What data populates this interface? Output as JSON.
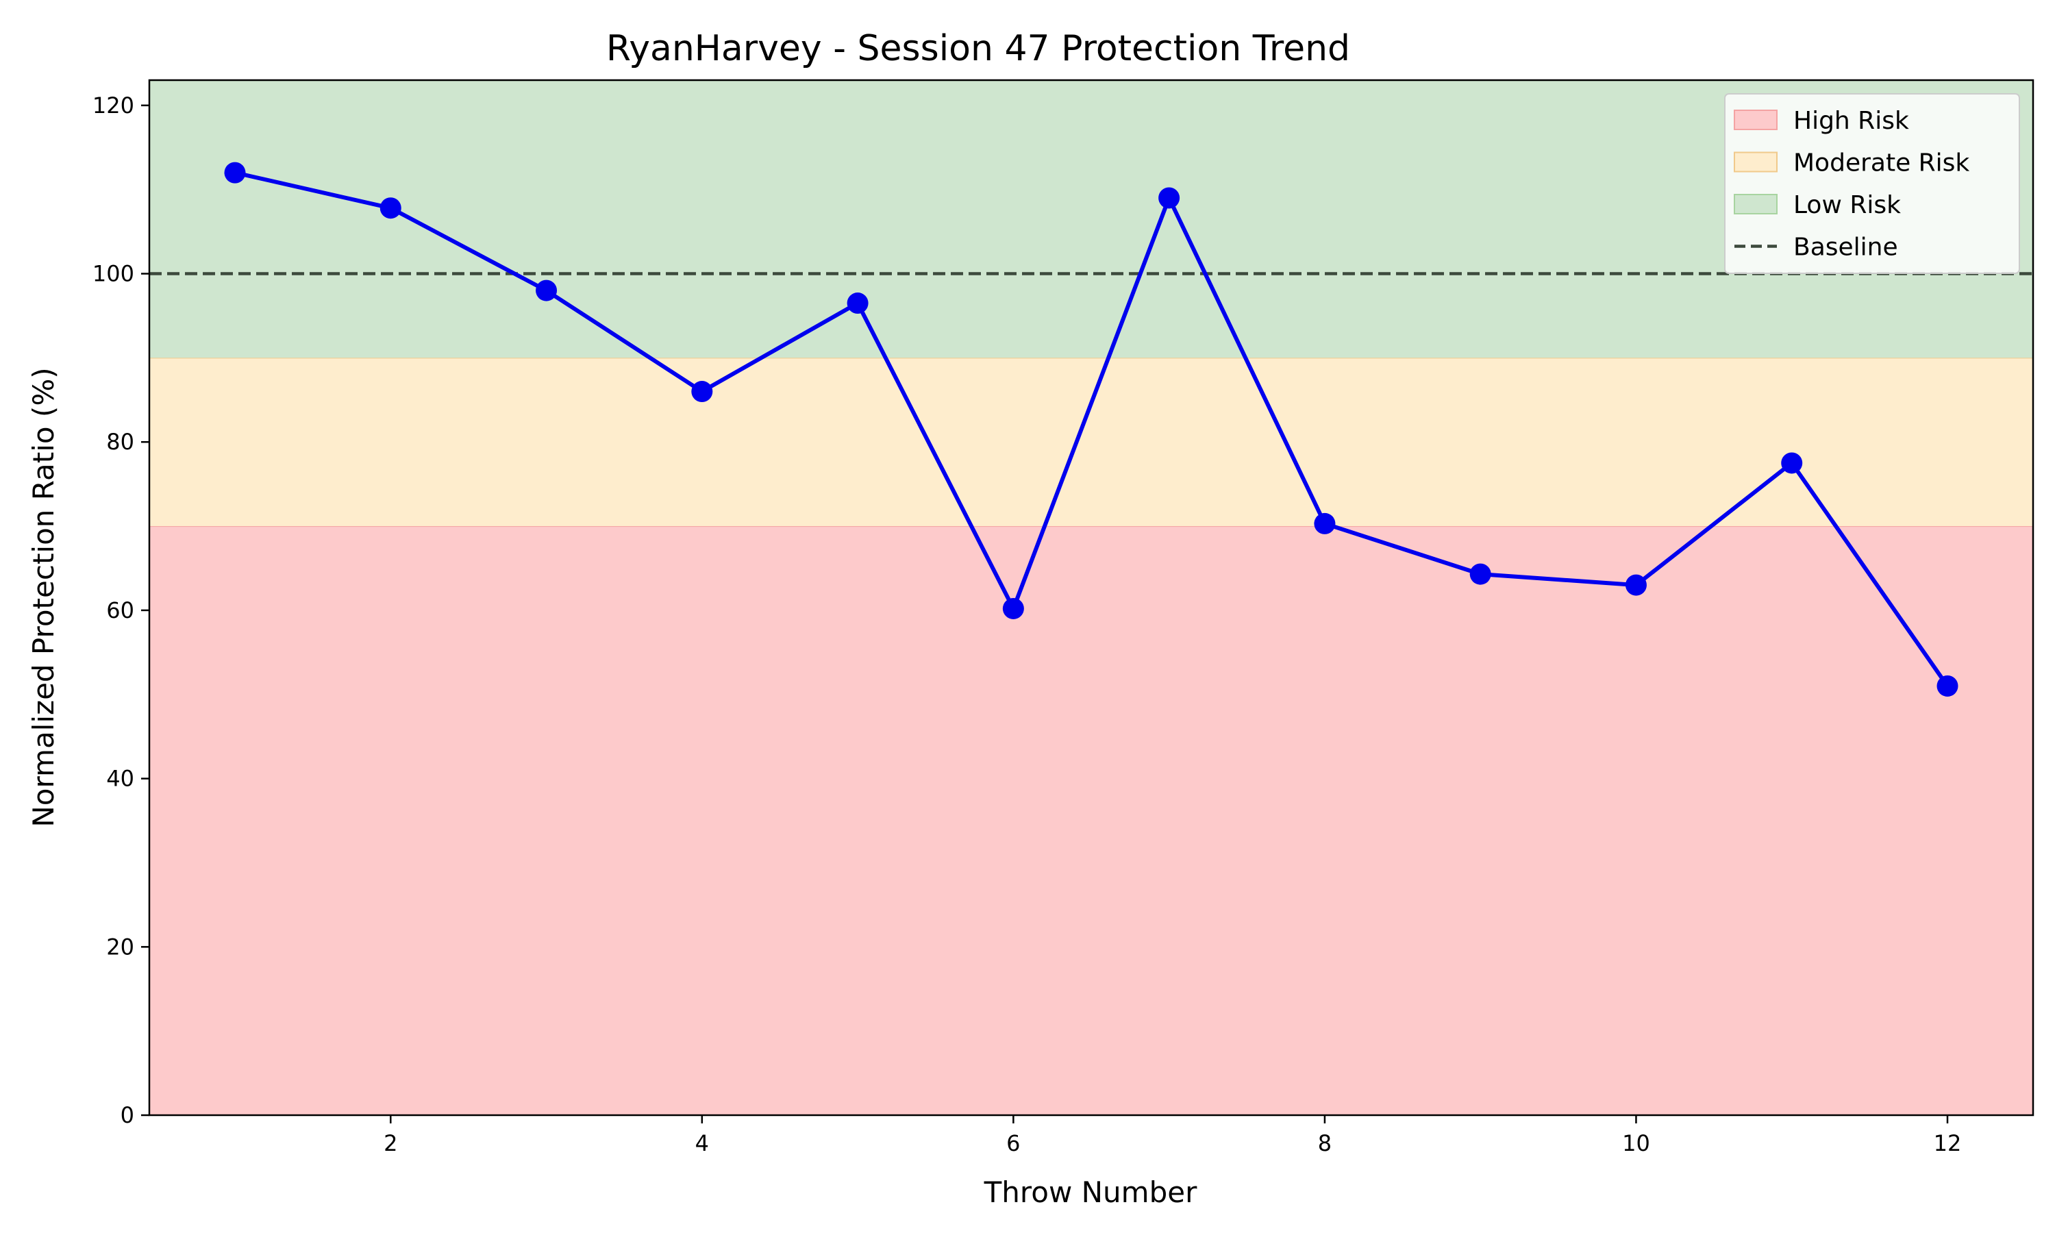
{
  "chart_data": {
    "type": "line",
    "title": "RyanHarvey - Session 47 Protection Trend",
    "xlabel": "Throw Number",
    "ylabel": "Normalized Protection Ratio (%)",
    "xlim": [
      0.45,
      12.55
    ],
    "ylim": [
      0,
      123
    ],
    "xticks": [
      2,
      4,
      6,
      8,
      10,
      12
    ],
    "yticks": [
      0,
      20,
      40,
      60,
      80,
      100,
      120
    ],
    "series": [
      {
        "color": "#0000ee",
        "x": [
          1,
          2,
          3,
          4,
          5,
          6,
          7,
          8,
          9,
          10,
          11,
          12
        ],
        "y": [
          112,
          107.8,
          98,
          86,
          96.5,
          60.2,
          109,
          70.3,
          64.3,
          63,
          77.5,
          51
        ]
      }
    ],
    "bands": [
      {
        "name": "High Risk",
        "from": 0,
        "to": 70,
        "color": "#fdcacb",
        "edge": "#f4a3a3"
      },
      {
        "name": "Moderate Risk",
        "from": 70,
        "to": 90,
        "color": "#feedcd",
        "edge": "#f0c98b"
      },
      {
        "name": "Low Risk",
        "from": 90,
        "to": 123,
        "color": "#cfe6cf",
        "edge": "#a8d4a0"
      }
    ],
    "baseline": {
      "name": "Baseline",
      "y": 100,
      "color": "#3d4a3d"
    },
    "legend": {
      "position": "top-right",
      "entries": [
        "High Risk",
        "Moderate Risk",
        "Low Risk",
        "Baseline"
      ]
    },
    "grid": false
  }
}
